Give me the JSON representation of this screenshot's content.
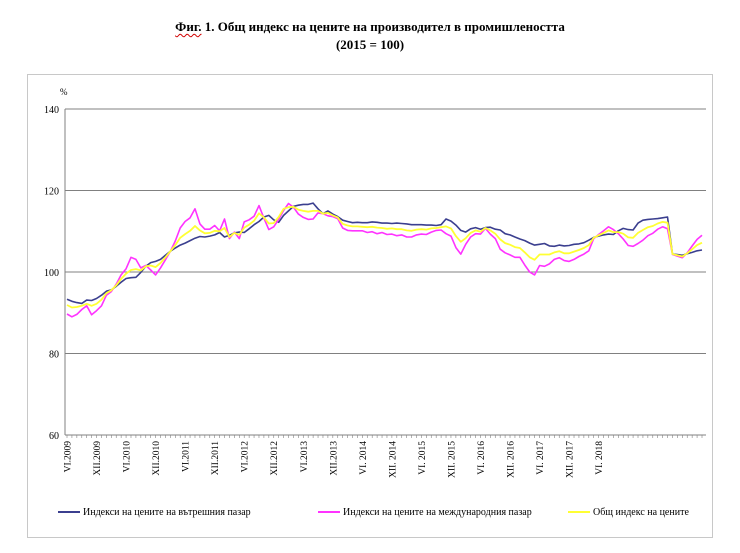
{
  "title": {
    "prefix": "Фиг.",
    "line1_rest": " 1. Общ индекс на цените на производител в промишлеността",
    "line2": "(2015 = 100)"
  },
  "colors": {
    "domestic": "#3b3f8f",
    "international": "#ff33ff",
    "total": "#ffff33",
    "axis": "#808080"
  },
  "chart_data": {
    "type": "line",
    "ylabel": "%",
    "ylim": [
      60,
      140
    ],
    "yticks": [
      60,
      80,
      100,
      120,
      140
    ],
    "x_tick_labels": [
      "VI.2009",
      "XII.2009",
      "VI.2010",
      "XII.2010",
      "VI.2011",
      "XII.2011",
      "VI.2012",
      "XII.2012",
      "VI.2013",
      "XII.2013",
      "VI. 2014",
      "XII. 2014",
      "VI. 2015",
      "XII. 2015",
      "VI. 2016",
      "XII. 2016",
      "VI. 2017",
      "XII. 2017",
      "VI. 2018"
    ],
    "x_start": "VI.2009",
    "legend_position": "bottom",
    "series": [
      {
        "name": "Индекси на цените на вътрешния пазар",
        "values": [
          93.3,
          92.8,
          92.5,
          92.3,
          93.1,
          93.0,
          93.5,
          94.3,
          95.3,
          95.6,
          96.5,
          97.5,
          98.4,
          98.6,
          98.7,
          99.9,
          101.4,
          102.3,
          102.6,
          103.1,
          104.1,
          105.1,
          105.9,
          106.6,
          107.1,
          107.7,
          108.3,
          108.7,
          108.6,
          108.8,
          109.1,
          109.7,
          108.6,
          109.0,
          109.6,
          109.8,
          109.7,
          110.6,
          111.6,
          112.4,
          113.5,
          113.9,
          112.8,
          112.2,
          113.9,
          115.0,
          116.1,
          116.4,
          116.6,
          116.6,
          116.9,
          115.5,
          114.3,
          115.0,
          114.2,
          113.6,
          112.7,
          112.4,
          112.1,
          112.2,
          112.1,
          112.1,
          112.3,
          112.2,
          112.0,
          112.0,
          111.9,
          112.0,
          111.9,
          111.8,
          111.6,
          111.6,
          111.6,
          111.5,
          111.5,
          111.4,
          111.6,
          113.0,
          112.5,
          111.5,
          110.2,
          109.8,
          110.6,
          110.9,
          110.5,
          110.9,
          111.0,
          110.5,
          110.3,
          109.4,
          109.1,
          108.6,
          108.1,
          107.7,
          107.1,
          106.6,
          106.8,
          107.0,
          106.4,
          106.3,
          106.6,
          106.4,
          106.5,
          106.8,
          106.9,
          107.2,
          107.8,
          108.5,
          108.8,
          109.1,
          109.3,
          109.2,
          110.1,
          110.7,
          110.4,
          110.3,
          112.0,
          112.7,
          112.9,
          113.0,
          113.1,
          113.3,
          113.5,
          104.4,
          104.3,
          104.1,
          104.5,
          104.8,
          105.2,
          105.4
        ]
      },
      {
        "name": "Индекси на цените на международния пазар",
        "values": [
          89.7,
          89.0,
          89.6,
          90.8,
          91.7,
          89.5,
          90.5,
          91.7,
          94.3,
          95.2,
          97.0,
          99.3,
          100.8,
          103.6,
          103.1,
          101.0,
          101.6,
          100.5,
          99.3,
          101.0,
          103.0,
          105.1,
          107.6,
          110.8,
          112.4,
          113.3,
          115.5,
          111.8,
          110.5,
          110.5,
          111.4,
          110.1,
          113.0,
          108.2,
          109.8,
          108.2,
          112.3,
          112.8,
          113.7,
          116.3,
          113.2,
          110.4,
          111.1,
          112.9,
          115.1,
          116.8,
          115.9,
          114.2,
          113.4,
          112.9,
          113.0,
          114.5,
          114.3,
          113.8,
          113.6,
          113.1,
          110.8,
          110.2,
          110.1,
          110.1,
          110.1,
          109.7,
          109.9,
          109.4,
          109.7,
          109.2,
          109.3,
          108.9,
          109.1,
          108.6,
          108.6,
          109.1,
          109.3,
          109.2,
          109.8,
          110.2,
          110.3,
          109.4,
          108.8,
          106.0,
          104.4,
          106.8,
          108.6,
          109.4,
          109.3,
          110.7,
          109.3,
          108.2,
          105.6,
          104.7,
          104.2,
          103.6,
          103.6,
          101.7,
          100.0,
          99.3,
          101.6,
          101.4,
          102.0,
          103.1,
          103.5,
          102.8,
          102.6,
          103.1,
          103.8,
          104.4,
          105.2,
          108.2,
          109.2,
          110.1,
          111.1,
          110.4,
          109.4,
          108.1,
          106.5,
          106.3,
          107.0,
          107.8,
          108.9,
          109.5,
          110.5,
          111.1,
          110.6,
          104.3,
          103.9,
          103.5,
          104.7,
          106.4,
          108.0,
          109.0
        ]
      },
      {
        "name": "Общ индекс на цените",
        "values": [
          91.9,
          91.3,
          91.4,
          91.7,
          92.2,
          91.7,
          92.2,
          93.2,
          94.8,
          95.5,
          96.7,
          98.3,
          99.6,
          100.5,
          100.7,
          100.4,
          101.4,
          101.6,
          101.2,
          102.2,
          103.6,
          105.1,
          106.6,
          108.4,
          109.3,
          110.1,
          111.3,
          110.2,
          109.5,
          109.6,
          110.1,
          110.0,
          110.8,
          108.6,
          109.6,
          109.1,
          110.9,
          111.6,
          112.6,
          114.4,
          113.4,
          111.9,
          112.0,
          113.5,
          115.5,
          115.9,
          116.0,
          115.3,
          115.0,
          114.8,
          115.0,
          115.0,
          114.3,
          114.5,
          113.9,
          113.4,
          111.8,
          111.4,
          111.2,
          111.2,
          111.1,
          111.0,
          111.1,
          110.9,
          110.8,
          110.6,
          110.7,
          110.5,
          110.5,
          110.2,
          110.1,
          110.4,
          110.5,
          110.4,
          110.7,
          110.8,
          111.0,
          111.2,
          110.7,
          108.8,
          107.4,
          108.3,
          109.6,
          110.2,
          109.9,
          110.8,
          110.2,
          109.4,
          108.0,
          107.1,
          106.7,
          106.1,
          105.9,
          104.8,
          103.6,
          103.0,
          104.3,
          104.3,
          104.3,
          104.8,
          105.1,
          104.6,
          104.6,
          105.0,
          105.4,
          105.9,
          106.6,
          108.4,
          109.0,
          109.6,
          110.2,
          109.8,
          109.8,
          109.4,
          108.5,
          108.4,
          109.6,
          110.3,
          111.0,
          111.3,
          111.9,
          112.3,
          112.1,
          104.4,
          104.1,
          103.8,
          104.6,
          105.6,
          106.6,
          107.2
        ]
      }
    ]
  }
}
